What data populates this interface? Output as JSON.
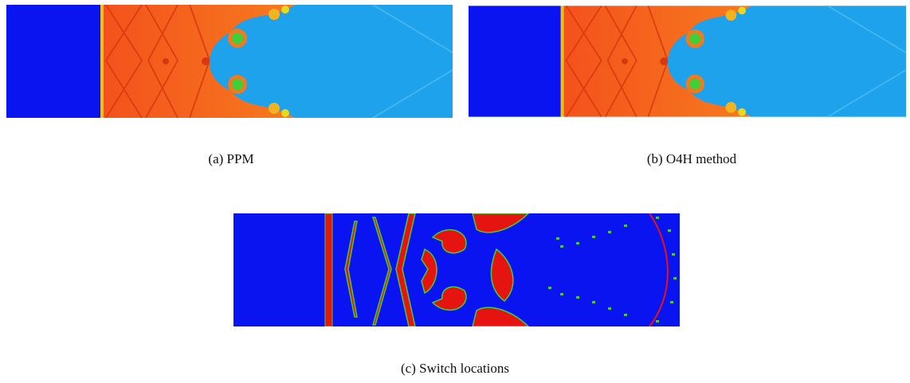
{
  "figure": {
    "subfigures": [
      {
        "caption": "(a) PPM"
      },
      {
        "caption": "(b) O4H method"
      },
      {
        "caption": "(c) Switch locations"
      }
    ]
  }
}
